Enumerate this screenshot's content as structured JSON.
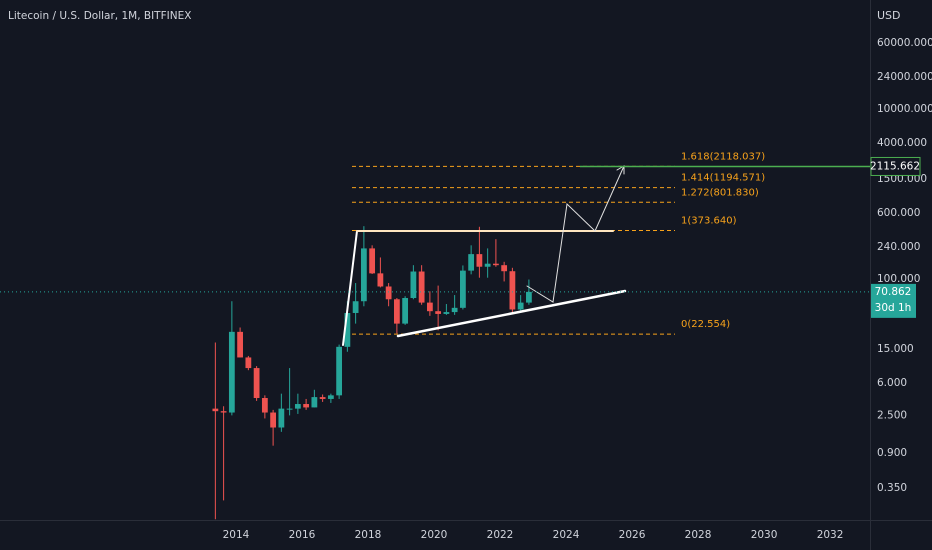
{
  "chart_data": {
    "type": "candlestick",
    "title": "Litecoin / U.S. Dollar, 1M, BITFINEX",
    "currency": "USD",
    "log_scale": true,
    "up_color": "#26a69a",
    "down_color": "#ef5350",
    "x": [
      2013.25,
      2013.5,
      2013.75,
      2014.0,
      2014.25,
      2014.5,
      2014.75,
      2015.0,
      2015.25,
      2015.5,
      2015.75,
      2016.0,
      2016.25,
      2016.5,
      2016.75,
      2017.0,
      2017.25,
      2017.5,
      2017.75,
      2018.0,
      2018.25,
      2018.5,
      2018.75,
      2019.0,
      2019.25,
      2019.5,
      2019.75,
      2020.0,
      2020.25,
      2020.5,
      2020.75,
      2021.0,
      2021.25,
      2021.5,
      2021.75,
      2022.0,
      2022.25,
      2022.5,
      2022.75
    ],
    "open": [
      3.0,
      2.8,
      2.7,
      24,
      12,
      9,
      4.0,
      2.7,
      1.8,
      3.0,
      3.0,
      3.4,
      3.1,
      4.1,
      3.9,
      4.3,
      16,
      40,
      55,
      230,
      117,
      82,
      58,
      30,
      60,
      123,
      53,
      42,
      39,
      41,
      46,
      126,
      197,
      140,
      152,
      146,
      124,
      44,
      53
    ],
    "high": [
      18,
      3.2,
      55,
      27,
      12.5,
      9.5,
      4.3,
      2.9,
      4.5,
      9,
      4.5,
      3.9,
      5.0,
      4.4,
      4.5,
      17,
      55,
      90,
      420,
      250,
      180,
      90,
      60,
      63,
      146,
      146,
      72,
      84,
      51,
      65,
      145,
      250,
      413,
      230,
      295,
      160,
      136,
      65,
      99
    ],
    "low": [
      0.15,
      0.25,
      2.5,
      12,
      8.5,
      3.7,
      2.3,
      1.1,
      1.6,
      2.5,
      2.6,
      2.9,
      3.1,
      3.6,
      3.5,
      3.9,
      14,
      30,
      48,
      115,
      80,
      48,
      23,
      29,
      58,
      50,
      37,
      25,
      38,
      38,
      44,
      114,
      104,
      104,
      140,
      94,
      40,
      42,
      50
    ],
    "close": [
      2.8,
      2.7,
      24,
      12,
      9,
      4.0,
      2.7,
      1.8,
      3.0,
      3.0,
      3.4,
      3.1,
      4.1,
      3.9,
      4.3,
      16,
      40,
      55,
      230,
      117,
      82,
      58,
      30,
      60,
      123,
      53,
      42,
      39,
      41,
      46,
      126,
      197,
      140,
      152,
      146,
      124,
      44,
      53,
      70.862
    ],
    "xlim": [
      2006.85,
      2033.21
    ],
    "xticks": [
      2014,
      2016,
      2018,
      2020,
      2022,
      2024,
      2026,
      2028,
      2030,
      2032
    ],
    "ylim": [
      0.147,
      192000
    ],
    "yticks": [
      {
        "value": 60000,
        "label": "60000.000"
      },
      {
        "value": 24000,
        "label": "24000.000"
      },
      {
        "value": 10000,
        "label": "10000.000"
      },
      {
        "value": 4000,
        "label": "4000.000"
      },
      {
        "value": 1500,
        "label": "1500.000"
      },
      {
        "value": 600,
        "label": "600.000"
      },
      {
        "value": 240,
        "label": "240.000"
      },
      {
        "value": 100,
        "label": "100.000"
      },
      {
        "value": 15,
        "label": "15.000"
      },
      {
        "value": 6,
        "label": "6.000"
      },
      {
        "value": 2.5,
        "label": "2.500"
      },
      {
        "value": 0.9,
        "label": "0.900"
      },
      {
        "value": 0.35,
        "label": "0.350"
      }
    ],
    "fib_levels": [
      {
        "value": 2118.037,
        "label": "1.618(2118.037)"
      },
      {
        "value": 1194.571,
        "label": "1.414(1194.571)"
      },
      {
        "value": 801.83,
        "label": "1.272(801.830)"
      },
      {
        "value": 373.64,
        "label": "1(373.640)"
      },
      {
        "value": 22.554,
        "label": "0(22.554)"
      }
    ],
    "fib_color": "#f7a21b",
    "price_line": {
      "value": 2115.662,
      "color": "#4caf50"
    },
    "last_price": 70.862,
    "last_color": "#26a69a",
    "countdown": "30d 1h"
  }
}
